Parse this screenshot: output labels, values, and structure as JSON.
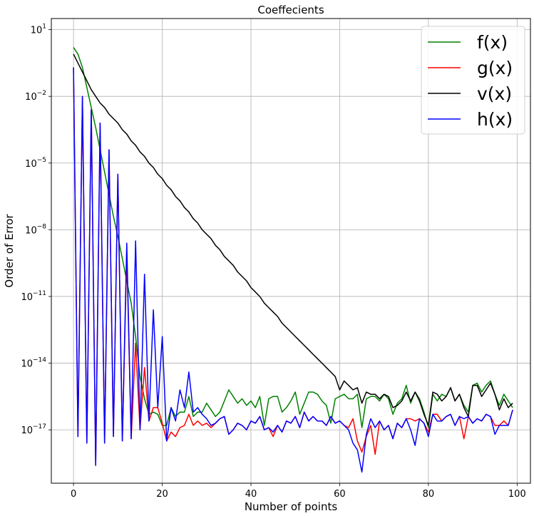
{
  "chart_data": {
    "type": "line",
    "title": "Coeffecients",
    "xlabel": "Number of points",
    "ylabel": "Order of Error",
    "xlim": [
      -5,
      103
    ],
    "ylim_log10": [
      -19.4,
      1.5
    ],
    "y_scale": "log",
    "grid": true,
    "legend_position": "top-right",
    "x_ticks": [
      0,
      20,
      40,
      60,
      80,
      100
    ],
    "y_ticks": [
      {
        "exp": 1,
        "label": "10",
        "sup": "1"
      },
      {
        "exp": -2,
        "label": "10",
        "sup": "−2"
      },
      {
        "exp": -5,
        "label": "10",
        "sup": "−5"
      },
      {
        "exp": -8,
        "label": "10",
        "sup": "−8"
      },
      {
        "exp": -11,
        "label": "10",
        "sup": "−11"
      },
      {
        "exp": -14,
        "label": "10",
        "sup": "−14"
      },
      {
        "exp": -17,
        "label": "10",
        "sup": "−17"
      }
    ],
    "series": [
      {
        "name": "f(x)",
        "color": "#008000",
        "log10_values": [
          0.2,
          -0.1,
          -0.7,
          -1.6,
          -2.5,
          -3.4,
          -4.4,
          -5.4,
          -6.4,
          -7.4,
          -8.3,
          -9.3,
          -10.3,
          -11.3,
          -12.8,
          -14.6,
          -15.6,
          -16.3,
          -16.2,
          -16.3,
          -16.8,
          -16.8,
          -16.0,
          -16.4,
          -16.2,
          -16.2,
          -15.5,
          -16.4,
          -16.2,
          -16.2,
          -15.8,
          -16.1,
          -16.4,
          -16.2,
          -15.7,
          -15.2,
          -15.5,
          -15.8,
          -15.6,
          -15.9,
          -15.7,
          -16.0,
          -15.5,
          -16.8,
          -15.6,
          -15.5,
          -15.5,
          -16.2,
          -16.0,
          -15.7,
          -15.3,
          -16.3,
          -15.8,
          -15.3,
          -15.3,
          -15.4,
          -15.7,
          -15.9,
          -16.7,
          -15.6,
          -15.5,
          -15.4,
          -15.6,
          -15.6,
          -15.4,
          -16.9,
          -15.6,
          -15.5,
          -15.5,
          -15.7,
          -15.4,
          -15.6,
          -16.3,
          -15.8,
          -15.6,
          -15.0,
          -15.8,
          -15.3,
          -15.6,
          -16.2,
          -16.9,
          -15.4,
          -15.7,
          -15.4,
          -15.5,
          -15.1,
          -15.7,
          -15.4,
          -15.9,
          -16.2,
          -15.0,
          -14.9,
          -15.3,
          -15.0,
          -14.8,
          -15.4,
          -15.9,
          -15.4,
          -15.7,
          -16.0
        ]
      },
      {
        "name": "g(x)",
        "color": "#ff0000",
        "log10_values": [
          -0.7,
          -17.3,
          -2.0,
          -17.6,
          -2.6,
          -18.6,
          -3.2,
          -17.6,
          -4.4,
          -17.3,
          -5.5,
          -17.5,
          -9.1,
          -17.4,
          -13.1,
          -17.0,
          -14.2,
          -16.6,
          -16.0,
          -16.0,
          -16.7,
          -17.5,
          -17.1,
          -17.3,
          -16.9,
          -16.8,
          -16.3,
          -16.8,
          -16.6,
          -16.8,
          -16.7,
          -16.9,
          -16.7,
          -16.5,
          -16.4,
          -17.2,
          -17.0,
          -16.7,
          -16.8,
          -17.0,
          -16.6,
          -16.7,
          -16.4,
          -17.0,
          -16.9,
          -17.3,
          -16.8,
          -17.1,
          -16.6,
          -16.7,
          -16.4,
          -16.9,
          -16.2,
          -16.6,
          -16.4,
          -16.6,
          -16.6,
          -16.8,
          -16.4,
          -16.7,
          -16.6,
          -16.8,
          -16.9,
          -16.5,
          -17.5,
          -18.0,
          -17.3,
          -16.8,
          -18.1,
          -16.6,
          -17.0,
          -16.8,
          -17.4,
          -16.7,
          -16.9,
          -16.5,
          -16.5,
          -16.6,
          -16.5,
          -16.7,
          -17.1,
          -16.3,
          -16.3,
          -16.6,
          -16.4,
          -16.3,
          -16.8,
          -16.4,
          -17.4,
          -16.4,
          -16.7,
          -16.5,
          -16.6,
          -16.3,
          -16.4,
          -16.8,
          -16.8,
          -16.6,
          -16.8,
          -16.1
        ]
      },
      {
        "name": "v(x)",
        "color": "#000000",
        "log10_values": [
          -0.1,
          -0.5,
          -0.9,
          -1.3,
          -1.7,
          -2.0,
          -2.3,
          -2.5,
          -2.8,
          -3.0,
          -3.2,
          -3.5,
          -3.7,
          -4.0,
          -4.2,
          -4.5,
          -4.7,
          -5.0,
          -5.2,
          -5.5,
          -5.7,
          -6.0,
          -6.2,
          -6.5,
          -6.7,
          -7.0,
          -7.2,
          -7.5,
          -7.7,
          -8.0,
          -8.2,
          -8.4,
          -8.7,
          -8.9,
          -9.2,
          -9.4,
          -9.6,
          -9.9,
          -10.1,
          -10.3,
          -10.6,
          -10.8,
          -11.0,
          -11.3,
          -11.5,
          -11.7,
          -11.9,
          -12.2,
          -12.4,
          -12.6,
          -12.8,
          -13.0,
          -13.2,
          -13.4,
          -13.6,
          -13.8,
          -14.0,
          -14.2,
          -14.4,
          -14.6,
          -15.2,
          -14.8,
          -15.0,
          -15.2,
          -15.1,
          -15.8,
          -15.3,
          -15.4,
          -15.4,
          -15.6,
          -15.4,
          -15.5,
          -16.0,
          -15.9,
          -15.7,
          -15.3,
          -15.7,
          -15.3,
          -15.7,
          -16.3,
          -16.8,
          -15.3,
          -15.4,
          -15.7,
          -15.5,
          -15.1,
          -15.7,
          -15.4,
          -16.0,
          -16.4,
          -15.0,
          -15.0,
          -15.5,
          -15.2,
          -14.9,
          -15.4,
          -16.1,
          -15.6,
          -16.0,
          -15.8
        ]
      },
      {
        "name": "h(x)",
        "color": "#0000ff",
        "log10_values": [
          -0.7,
          -17.3,
          -2.0,
          -17.6,
          -2.6,
          -18.6,
          -3.2,
          -17.6,
          -4.4,
          -17.3,
          -5.5,
          -17.5,
          -8.6,
          -17.4,
          -8.5,
          -17.0,
          -10.0,
          -16.6,
          -11.6,
          -16.0,
          -12.8,
          -17.5,
          -16.0,
          -16.6,
          -15.2,
          -16.0,
          -14.4,
          -16.2,
          -16.0,
          -16.3,
          -16.5,
          -16.8,
          -16.7,
          -16.5,
          -16.4,
          -17.2,
          -17.0,
          -16.7,
          -16.8,
          -17.0,
          -16.6,
          -16.7,
          -16.4,
          -17.0,
          -16.9,
          -17.1,
          -16.8,
          -17.1,
          -16.6,
          -16.7,
          -16.4,
          -16.9,
          -16.2,
          -16.6,
          -16.4,
          -16.6,
          -16.6,
          -16.8,
          -16.4,
          -16.7,
          -16.6,
          -16.8,
          -17.0,
          -17.6,
          -17.9,
          -18.9,
          -17.2,
          -16.5,
          -16.9,
          -16.6,
          -17.0,
          -16.8,
          -17.4,
          -16.7,
          -16.9,
          -16.5,
          -17.0,
          -17.7,
          -16.5,
          -16.7,
          -17.3,
          -16.3,
          -16.6,
          -16.6,
          -16.4,
          -16.3,
          -16.8,
          -16.4,
          -16.5,
          -16.4,
          -16.7,
          -16.5,
          -16.6,
          -16.3,
          -16.4,
          -17.2,
          -16.8,
          -16.8,
          -16.8,
          -16.1
        ]
      }
    ]
  }
}
